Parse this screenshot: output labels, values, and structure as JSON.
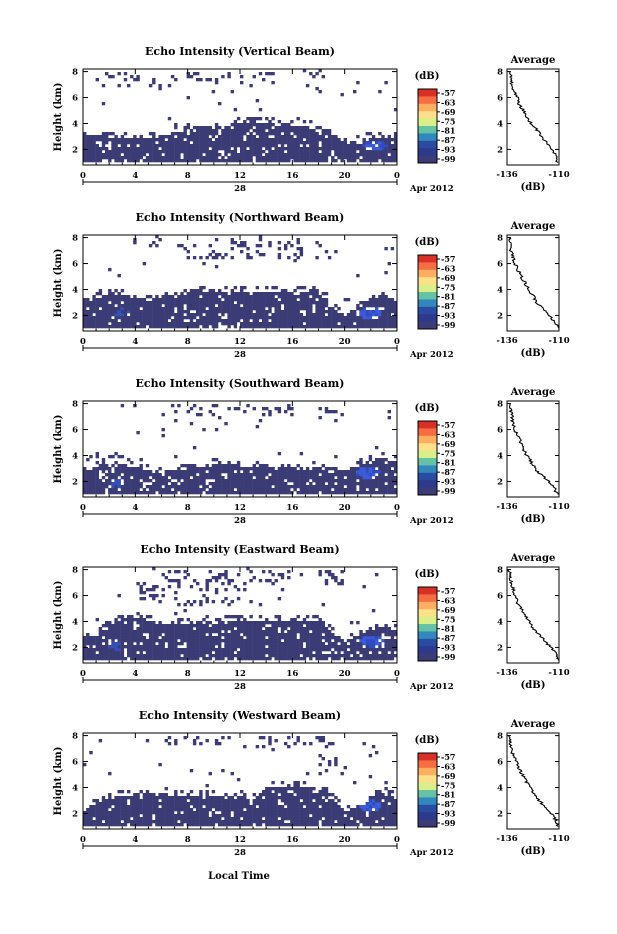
{
  "figure": {
    "xlabel": "Local Time",
    "date_suffix": "Apr 2012",
    "day_label": "28",
    "colorbar_unit": "(dB)",
    "colorbar_ticks": [
      "-57",
      "-63",
      "-69",
      "-75",
      "-81",
      "-87",
      "-93",
      "-99"
    ],
    "colorbar_colors": [
      "#d73027",
      "#f46d43",
      "#fdae61",
      "#fee08b",
      "#d9ef8b",
      "#66c2a5",
      "#3288bd",
      "#2b4ba0",
      "#2d3a8c",
      "#3b3b75"
    ],
    "background_fill": "#3b3b75"
  },
  "chart_data": [
    {
      "type": "heatmap",
      "title": "Echo Intensity (Vertical Beam)",
      "ylabel": "Height (km)",
      "x_ticks": [
        "0",
        "4",
        "8",
        "12",
        "16",
        "20",
        "0"
      ],
      "xlim": [
        0,
        24
      ],
      "y_ticks": [
        "2",
        "4",
        "6",
        "8"
      ],
      "ylim": [
        0.8,
        8.2
      ],
      "colorbar": {
        "unit": "(dB)",
        "ticks": [
          "-57",
          "-63",
          "-69",
          "-75",
          "-81",
          "-87",
          "-93",
          "-99"
        ]
      },
      "profile": {
        "type": "line",
        "title": "Average",
        "xlabel": "(dB)",
        "x_ticks": [
          "-136",
          "-110"
        ],
        "xlim": [
          -136,
          -110
        ],
        "y_ticks": [
          "2",
          "4",
          "6",
          "8"
        ],
        "ylim": [
          0.8,
          8.2
        ],
        "x": [
          -111,
          -111.5,
          -114,
          -116,
          -119,
          -121,
          -124,
          -126,
          -128,
          -130,
          -131,
          -132.5,
          -133.5,
          -134,
          -134.5
        ],
        "y": [
          1.0,
          1.5,
          2.0,
          2.5,
          3.0,
          3.5,
          4.0,
          4.5,
          5.0,
          5.5,
          6.0,
          6.5,
          7.0,
          7.5,
          8.0
        ]
      }
    },
    {
      "type": "heatmap",
      "title": "Echo Intensity (Northward Beam)",
      "ylabel": "Height (km)",
      "x_ticks": [
        "0",
        "4",
        "8",
        "12",
        "16",
        "20",
        "0"
      ],
      "xlim": [
        0,
        24
      ],
      "y_ticks": [
        "2",
        "4",
        "6",
        "8"
      ],
      "ylim": [
        0.8,
        8.2
      ],
      "colorbar": {
        "unit": "(dB)",
        "ticks": [
          "-57",
          "-63",
          "-69",
          "-75",
          "-81",
          "-87",
          "-93",
          "-99"
        ]
      },
      "profile": {
        "type": "line",
        "title": "Average",
        "xlabel": "(dB)",
        "x_ticks": [
          "-136",
          "-110"
        ],
        "xlim": [
          -136,
          -110
        ],
        "y_ticks": [
          "2",
          "4",
          "6",
          "8"
        ],
        "ylim": [
          0.8,
          8.2
        ],
        "x": [
          -110.5,
          -112,
          -115,
          -118,
          -121,
          -123,
          -125,
          -127,
          -129,
          -130.5,
          -132,
          -133,
          -134,
          -134.5,
          -135
        ],
        "y": [
          1.0,
          1.5,
          2.0,
          2.5,
          3.0,
          3.5,
          4.0,
          4.5,
          5.0,
          5.5,
          6.0,
          6.5,
          7.0,
          7.5,
          8.0
        ]
      }
    },
    {
      "type": "heatmap",
      "title": "Echo Intensity (Southward Beam)",
      "ylabel": "Height (km)",
      "x_ticks": [
        "0",
        "4",
        "8",
        "12",
        "16",
        "20",
        "0"
      ],
      "xlim": [
        0,
        24
      ],
      "y_ticks": [
        "2",
        "4",
        "6",
        "8"
      ],
      "ylim": [
        0.8,
        8.2
      ],
      "colorbar": {
        "unit": "(dB)",
        "ticks": [
          "-57",
          "-63",
          "-69",
          "-75",
          "-81",
          "-87",
          "-93",
          "-99"
        ]
      },
      "profile": {
        "type": "line",
        "title": "Average",
        "xlabel": "(dB)",
        "x_ticks": [
          "-136",
          "-110"
        ],
        "xlim": [
          -136,
          -110
        ],
        "y_ticks": [
          "2",
          "4",
          "6",
          "8"
        ],
        "ylim": [
          0.8,
          8.2
        ],
        "x": [
          -111,
          -112,
          -115,
          -119,
          -122,
          -124,
          -126,
          -128,
          -129,
          -130.5,
          -132,
          -133,
          -133.5,
          -134,
          -134.5
        ],
        "y": [
          1.0,
          1.5,
          2.0,
          2.5,
          3.0,
          3.5,
          4.0,
          4.5,
          5.0,
          5.5,
          6.0,
          6.5,
          7.0,
          7.5,
          8.0
        ]
      }
    },
    {
      "type": "heatmap",
      "title": "Echo Intensity (Eastward Beam)",
      "ylabel": "Height (km)",
      "x_ticks": [
        "0",
        "4",
        "8",
        "12",
        "16",
        "20",
        "0"
      ],
      "xlim": [
        0,
        24
      ],
      "y_ticks": [
        "2",
        "4",
        "6",
        "8"
      ],
      "ylim": [
        0.8,
        8.2
      ],
      "colorbar": {
        "unit": "(dB)",
        "ticks": [
          "-57",
          "-63",
          "-69",
          "-75",
          "-81",
          "-87",
          "-93",
          "-99"
        ]
      },
      "profile": {
        "type": "line",
        "title": "Average",
        "xlabel": "(dB)",
        "x_ticks": [
          "-136",
          "-110"
        ],
        "xlim": [
          -136,
          -110
        ],
        "y_ticks": [
          "2",
          "4",
          "6",
          "8"
        ],
        "ylim": [
          0.8,
          8.2
        ],
        "x": [
          -110.5,
          -111.5,
          -114,
          -117,
          -120,
          -123,
          -125,
          -127,
          -129,
          -131,
          -132,
          -133,
          -134,
          -134.5,
          -135
        ],
        "y": [
          1.0,
          1.5,
          2.0,
          2.5,
          3.0,
          3.5,
          4.0,
          4.5,
          5.0,
          5.5,
          6.0,
          6.5,
          7.0,
          7.5,
          8.0
        ]
      }
    },
    {
      "type": "heatmap",
      "title": "Echo Intensity (Westward Beam)",
      "ylabel": "Height (km)",
      "x_ticks": [
        "0",
        "4",
        "8",
        "12",
        "16",
        "20",
        "0"
      ],
      "xlim": [
        0,
        24
      ],
      "y_ticks": [
        "2",
        "4",
        "6",
        "8"
      ],
      "ylim": [
        0.8,
        8.2
      ],
      "colorbar": {
        "unit": "(dB)",
        "ticks": [
          "-57",
          "-63",
          "-69",
          "-75",
          "-81",
          "-87",
          "-93",
          "-99"
        ]
      },
      "profile": {
        "type": "line",
        "title": "Average",
        "xlabel": "(dB)",
        "x_ticks": [
          "-136",
          "-110"
        ],
        "xlim": [
          -136,
          -110
        ],
        "y_ticks": [
          "2",
          "4",
          "6",
          "8"
        ],
        "ylim": [
          0.8,
          8.2
        ],
        "x": [
          -110.5,
          -111.5,
          -114,
          -117,
          -120,
          -122.5,
          -124.5,
          -126.5,
          -128.5,
          -130,
          -131.5,
          -133,
          -134,
          -134.5,
          -135
        ],
        "y": [
          1.0,
          1.5,
          2.0,
          2.5,
          3.0,
          3.5,
          4.0,
          4.5,
          5.0,
          5.5,
          6.0,
          6.5,
          7.0,
          7.5,
          8.0
        ]
      }
    }
  ]
}
